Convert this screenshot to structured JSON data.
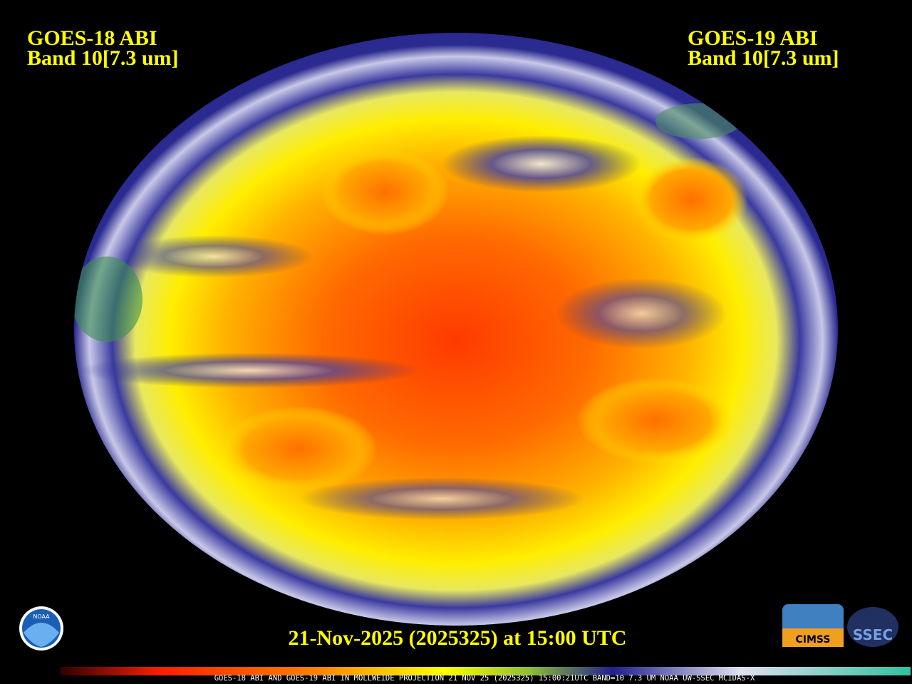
{
  "header": {
    "left_title": "GOES-18 ABI",
    "left_band": "Band 10[7.3 um]",
    "right_title": "GOES-19 ABI",
    "right_band": "Band 10[7.3 um]"
  },
  "timestamp": "21-Nov-2025 (2025325) at 15:00 UTC",
  "footer": "GOES-18 ABI AND GOES-19 ABI IN MOLLWEIDE PROJECTION 21 NOV 25 (2025325) 15:00:21UTC BAND=10 7.3 UM NOAA UW-SSEC MCIDAS-X",
  "logos": {
    "noaa": "NOAA",
    "cimss": "CIMSS",
    "ssec": "SSEC"
  }
}
